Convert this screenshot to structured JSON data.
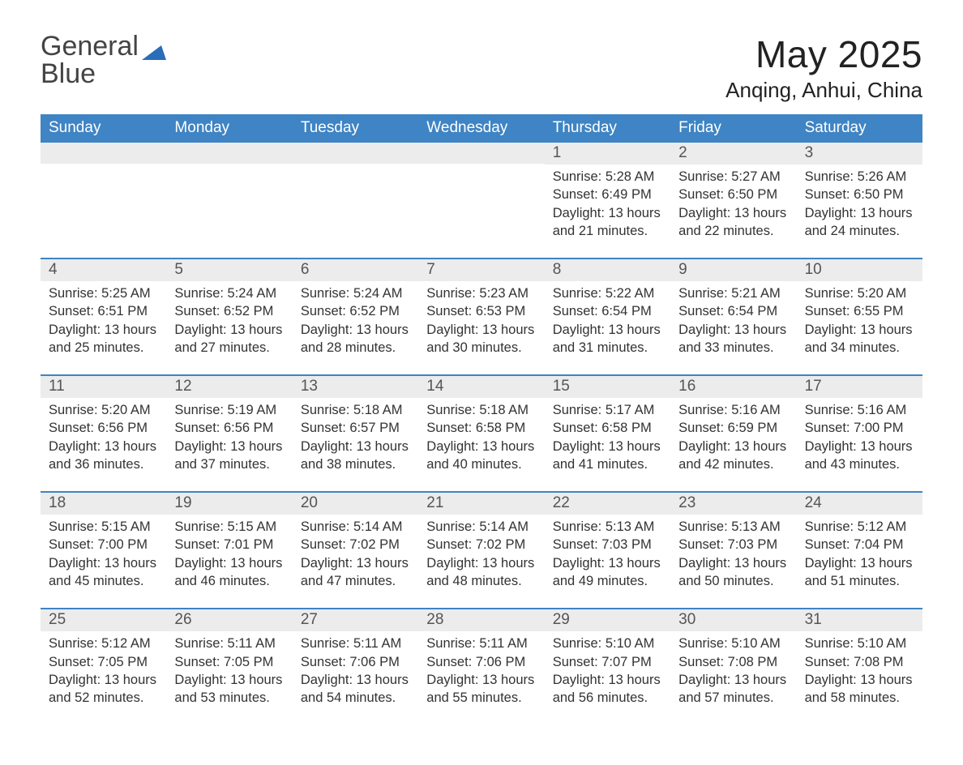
{
  "logo": {
    "word1": "General",
    "word2": "Blue",
    "triangle_color": "#2a6db8"
  },
  "title": {
    "month": "May 2025",
    "location": "Anqing, Anhui, China"
  },
  "colors": {
    "header_bg": "#3f84c4",
    "header_text": "#ffffff",
    "daynum_bg": "#ececec",
    "week_border": "#3f84c4",
    "body_text": "#333333"
  },
  "day_headers": [
    "Sunday",
    "Monday",
    "Tuesday",
    "Wednesday",
    "Thursday",
    "Friday",
    "Saturday"
  ],
  "weeks": [
    [
      {
        "empty": true
      },
      {
        "empty": true
      },
      {
        "empty": true
      },
      {
        "empty": true
      },
      {
        "day": "1",
        "sunrise": "Sunrise: 5:28 AM",
        "sunset": "Sunset: 6:49 PM",
        "daylight": "Daylight: 13 hours and 21 minutes."
      },
      {
        "day": "2",
        "sunrise": "Sunrise: 5:27 AM",
        "sunset": "Sunset: 6:50 PM",
        "daylight": "Daylight: 13 hours and 22 minutes."
      },
      {
        "day": "3",
        "sunrise": "Sunrise: 5:26 AM",
        "sunset": "Sunset: 6:50 PM",
        "daylight": "Daylight: 13 hours and 24 minutes."
      }
    ],
    [
      {
        "day": "4",
        "sunrise": "Sunrise: 5:25 AM",
        "sunset": "Sunset: 6:51 PM",
        "daylight": "Daylight: 13 hours and 25 minutes."
      },
      {
        "day": "5",
        "sunrise": "Sunrise: 5:24 AM",
        "sunset": "Sunset: 6:52 PM",
        "daylight": "Daylight: 13 hours and 27 minutes."
      },
      {
        "day": "6",
        "sunrise": "Sunrise: 5:24 AM",
        "sunset": "Sunset: 6:52 PM",
        "daylight": "Daylight: 13 hours and 28 minutes."
      },
      {
        "day": "7",
        "sunrise": "Sunrise: 5:23 AM",
        "sunset": "Sunset: 6:53 PM",
        "daylight": "Daylight: 13 hours and 30 minutes."
      },
      {
        "day": "8",
        "sunrise": "Sunrise: 5:22 AM",
        "sunset": "Sunset: 6:54 PM",
        "daylight": "Daylight: 13 hours and 31 minutes."
      },
      {
        "day": "9",
        "sunrise": "Sunrise: 5:21 AM",
        "sunset": "Sunset: 6:54 PM",
        "daylight": "Daylight: 13 hours and 33 minutes."
      },
      {
        "day": "10",
        "sunrise": "Sunrise: 5:20 AM",
        "sunset": "Sunset: 6:55 PM",
        "daylight": "Daylight: 13 hours and 34 minutes."
      }
    ],
    [
      {
        "day": "11",
        "sunrise": "Sunrise: 5:20 AM",
        "sunset": "Sunset: 6:56 PM",
        "daylight": "Daylight: 13 hours and 36 minutes."
      },
      {
        "day": "12",
        "sunrise": "Sunrise: 5:19 AM",
        "sunset": "Sunset: 6:56 PM",
        "daylight": "Daylight: 13 hours and 37 minutes."
      },
      {
        "day": "13",
        "sunrise": "Sunrise: 5:18 AM",
        "sunset": "Sunset: 6:57 PM",
        "daylight": "Daylight: 13 hours and 38 minutes."
      },
      {
        "day": "14",
        "sunrise": "Sunrise: 5:18 AM",
        "sunset": "Sunset: 6:58 PM",
        "daylight": "Daylight: 13 hours and 40 minutes."
      },
      {
        "day": "15",
        "sunrise": "Sunrise: 5:17 AM",
        "sunset": "Sunset: 6:58 PM",
        "daylight": "Daylight: 13 hours and 41 minutes."
      },
      {
        "day": "16",
        "sunrise": "Sunrise: 5:16 AM",
        "sunset": "Sunset: 6:59 PM",
        "daylight": "Daylight: 13 hours and 42 minutes."
      },
      {
        "day": "17",
        "sunrise": "Sunrise: 5:16 AM",
        "sunset": "Sunset: 7:00 PM",
        "daylight": "Daylight: 13 hours and 43 minutes."
      }
    ],
    [
      {
        "day": "18",
        "sunrise": "Sunrise: 5:15 AM",
        "sunset": "Sunset: 7:00 PM",
        "daylight": "Daylight: 13 hours and 45 minutes."
      },
      {
        "day": "19",
        "sunrise": "Sunrise: 5:15 AM",
        "sunset": "Sunset: 7:01 PM",
        "daylight": "Daylight: 13 hours and 46 minutes."
      },
      {
        "day": "20",
        "sunrise": "Sunrise: 5:14 AM",
        "sunset": "Sunset: 7:02 PM",
        "daylight": "Daylight: 13 hours and 47 minutes."
      },
      {
        "day": "21",
        "sunrise": "Sunrise: 5:14 AM",
        "sunset": "Sunset: 7:02 PM",
        "daylight": "Daylight: 13 hours and 48 minutes."
      },
      {
        "day": "22",
        "sunrise": "Sunrise: 5:13 AM",
        "sunset": "Sunset: 7:03 PM",
        "daylight": "Daylight: 13 hours and 49 minutes."
      },
      {
        "day": "23",
        "sunrise": "Sunrise: 5:13 AM",
        "sunset": "Sunset: 7:03 PM",
        "daylight": "Daylight: 13 hours and 50 minutes."
      },
      {
        "day": "24",
        "sunrise": "Sunrise: 5:12 AM",
        "sunset": "Sunset: 7:04 PM",
        "daylight": "Daylight: 13 hours and 51 minutes."
      }
    ],
    [
      {
        "day": "25",
        "sunrise": "Sunrise: 5:12 AM",
        "sunset": "Sunset: 7:05 PM",
        "daylight": "Daylight: 13 hours and 52 minutes."
      },
      {
        "day": "26",
        "sunrise": "Sunrise: 5:11 AM",
        "sunset": "Sunset: 7:05 PM",
        "daylight": "Daylight: 13 hours and 53 minutes."
      },
      {
        "day": "27",
        "sunrise": "Sunrise: 5:11 AM",
        "sunset": "Sunset: 7:06 PM",
        "daylight": "Daylight: 13 hours and 54 minutes."
      },
      {
        "day": "28",
        "sunrise": "Sunrise: 5:11 AM",
        "sunset": "Sunset: 7:06 PM",
        "daylight": "Daylight: 13 hours and 55 minutes."
      },
      {
        "day": "29",
        "sunrise": "Sunrise: 5:10 AM",
        "sunset": "Sunset: 7:07 PM",
        "daylight": "Daylight: 13 hours and 56 minutes."
      },
      {
        "day": "30",
        "sunrise": "Sunrise: 5:10 AM",
        "sunset": "Sunset: 7:08 PM",
        "daylight": "Daylight: 13 hours and 57 minutes."
      },
      {
        "day": "31",
        "sunrise": "Sunrise: 5:10 AM",
        "sunset": "Sunset: 7:08 PM",
        "daylight": "Daylight: 13 hours and 58 minutes."
      }
    ]
  ]
}
